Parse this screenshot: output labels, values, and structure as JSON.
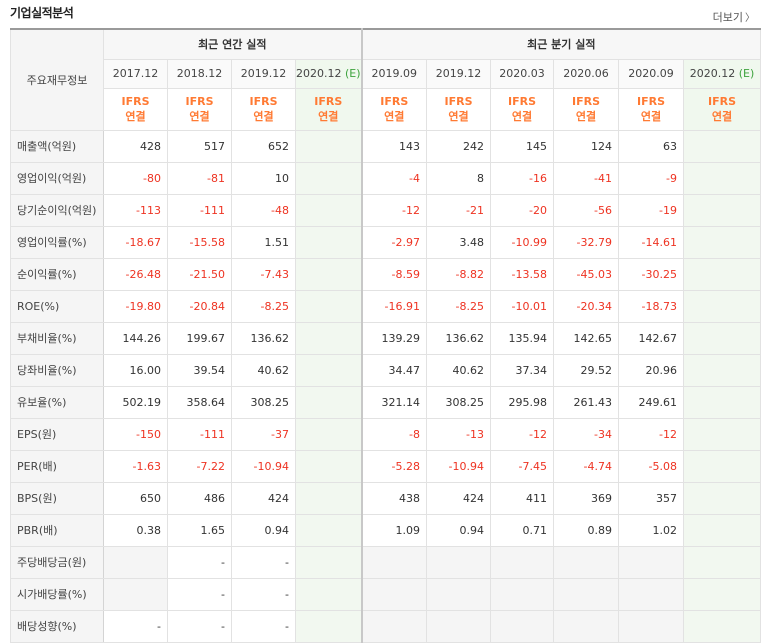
{
  "title": "기업실적분석",
  "more_label": "더보기",
  "table": {
    "rowhead": "주요재무정보",
    "groups": {
      "annual": "최근 연간 실적",
      "quarterly": "최근 분기 실적"
    },
    "annual_periods": [
      "2017.12",
      "2018.12",
      "2019.12",
      "2020.12"
    ],
    "quarter_periods": [
      "2019.09",
      "2019.12",
      "2020.03",
      "2020.06",
      "2020.09",
      "2020.12"
    ],
    "estimate_mark": "(E)",
    "ifrs_label": "IFRS",
    "consol_label": "연결",
    "rows": [
      {
        "label": "매출액(억원)",
        "annual": [
          "428",
          "517",
          "652",
          ""
        ],
        "quarter": [
          "143",
          "242",
          "145",
          "124",
          "63",
          ""
        ]
      },
      {
        "label": "영업이익(억원)",
        "annual": [
          "-80",
          "-81",
          "10",
          ""
        ],
        "quarter": [
          "-4",
          "8",
          "-16",
          "-41",
          "-9",
          ""
        ]
      },
      {
        "label": "당기순이익(억원)",
        "annual": [
          "-113",
          "-111",
          "-48",
          ""
        ],
        "quarter": [
          "-12",
          "-21",
          "-20",
          "-56",
          "-19",
          ""
        ]
      },
      {
        "label": "영업이익률(%)",
        "annual": [
          "-18.67",
          "-15.58",
          "1.51",
          ""
        ],
        "quarter": [
          "-2.97",
          "3.48",
          "-10.99",
          "-32.79",
          "-14.61",
          ""
        ]
      },
      {
        "label": "순이익률(%)",
        "annual": [
          "-26.48",
          "-21.50",
          "-7.43",
          ""
        ],
        "quarter": [
          "-8.59",
          "-8.82",
          "-13.58",
          "-45.03",
          "-30.25",
          ""
        ]
      },
      {
        "label": "ROE(%)",
        "annual": [
          "-19.80",
          "-20.84",
          "-8.25",
          ""
        ],
        "quarter": [
          "-16.91",
          "-8.25",
          "-10.01",
          "-20.34",
          "-18.73",
          ""
        ]
      },
      {
        "label": "부채비율(%)",
        "annual": [
          "144.26",
          "199.67",
          "136.62",
          ""
        ],
        "quarter": [
          "139.29",
          "136.62",
          "135.94",
          "142.65",
          "142.67",
          ""
        ]
      },
      {
        "label": "당좌비율(%)",
        "annual": [
          "16.00",
          "39.54",
          "40.62",
          ""
        ],
        "quarter": [
          "34.47",
          "40.62",
          "37.34",
          "29.52",
          "20.96",
          ""
        ]
      },
      {
        "label": "유보율(%)",
        "annual": [
          "502.19",
          "358.64",
          "308.25",
          ""
        ],
        "quarter": [
          "321.14",
          "308.25",
          "295.98",
          "261.43",
          "249.61",
          ""
        ]
      },
      {
        "label": "EPS(원)",
        "annual": [
          "-150",
          "-111",
          "-37",
          ""
        ],
        "quarter": [
          "-8",
          "-13",
          "-12",
          "-34",
          "-12",
          ""
        ]
      },
      {
        "label": "PER(배)",
        "annual": [
          "-1.63",
          "-7.22",
          "-10.94",
          ""
        ],
        "quarter": [
          "-5.28",
          "-10.94",
          "-7.45",
          "-4.74",
          "-5.08",
          ""
        ]
      },
      {
        "label": "BPS(원)",
        "annual": [
          "650",
          "486",
          "424",
          ""
        ],
        "quarter": [
          "438",
          "424",
          "411",
          "369",
          "357",
          ""
        ]
      },
      {
        "label": "PBR(배)",
        "annual": [
          "0.38",
          "1.65",
          "0.94",
          ""
        ],
        "quarter": [
          "1.09",
          "0.94",
          "0.71",
          "0.89",
          "1.02",
          ""
        ]
      },
      {
        "label": "주당배당금(원)",
        "annual": [
          "",
          "-",
          "-",
          ""
        ],
        "quarter": [
          "",
          "",
          "",
          "",
          "",
          ""
        ]
      },
      {
        "label": "시가배당률(%)",
        "annual": [
          "",
          "-",
          "-",
          ""
        ],
        "quarter": [
          "",
          "",
          "",
          "",
          "",
          ""
        ]
      },
      {
        "label": "배당성향(%)",
        "annual": [
          "-",
          "-",
          "-",
          ""
        ],
        "quarter": [
          "",
          "",
          "",
          "",
          "",
          ""
        ]
      }
    ],
    "colors": {
      "negative": "#ee3322",
      "ifrs": "#ff7a33",
      "estimate_mark": "#3ea33e"
    }
  }
}
